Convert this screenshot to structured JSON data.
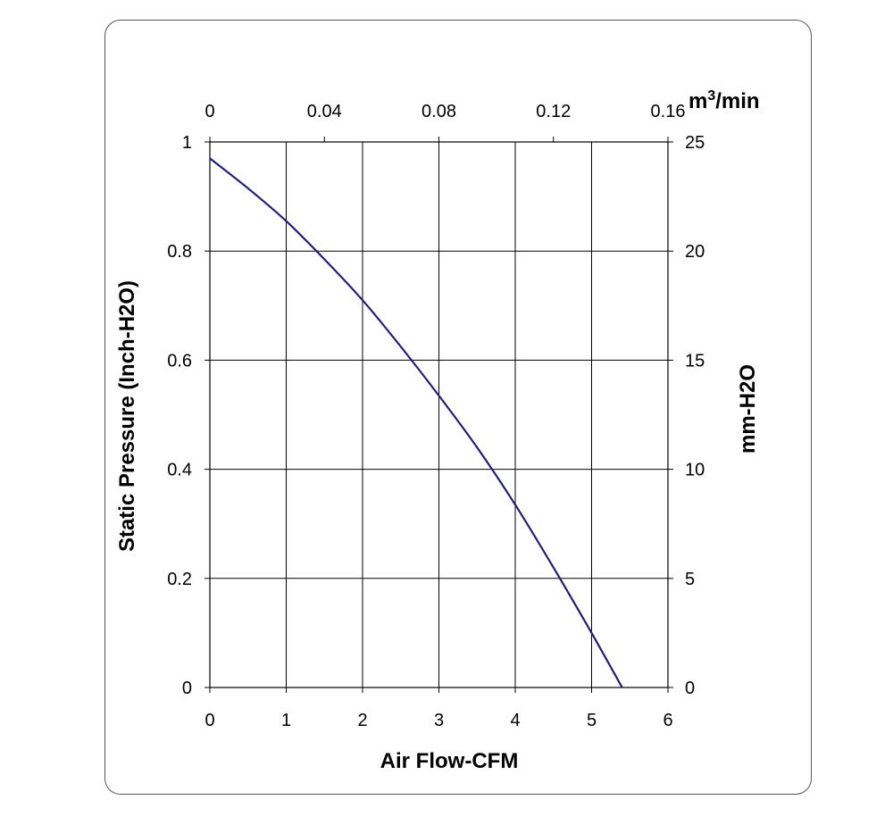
{
  "chart_data": {
    "type": "line",
    "title": "",
    "xlabel": "Air Flow-CFM",
    "ylabel": "Static Pressure (Inch-H2O)",
    "x2label": "m³/min",
    "x2label_base": "m",
    "x2label_sup": "3",
    "x2label_rest": "/min",
    "y2label": "mm-H2O",
    "xlim": [
      0,
      6
    ],
    "ylim": [
      0,
      1
    ],
    "x2lim": [
      0,
      0.16
    ],
    "y2lim": [
      0,
      25
    ],
    "x_ticks": [
      "0",
      "1",
      "2",
      "3",
      "4",
      "5",
      "6"
    ],
    "y_ticks": [
      "0",
      "0.2",
      "0.4",
      "0.6",
      "0.8",
      "1"
    ],
    "x2_ticks": [
      "0",
      "0.04",
      "0.08",
      "0.12",
      "0.16"
    ],
    "y2_ticks": [
      "0",
      "5",
      "10",
      "15",
      "20",
      "25"
    ],
    "grid": true,
    "series": [
      {
        "name": "",
        "color": "#1f1f7a",
        "x": [
          0,
          0.5,
          1,
          1.5,
          2,
          2.5,
          3,
          3.5,
          4,
          4.5,
          5,
          5.4
        ],
        "y": [
          0.97,
          0.915,
          0.855,
          0.785,
          0.71,
          0.625,
          0.535,
          0.44,
          0.335,
          0.22,
          0.1,
          0
        ]
      }
    ]
  }
}
